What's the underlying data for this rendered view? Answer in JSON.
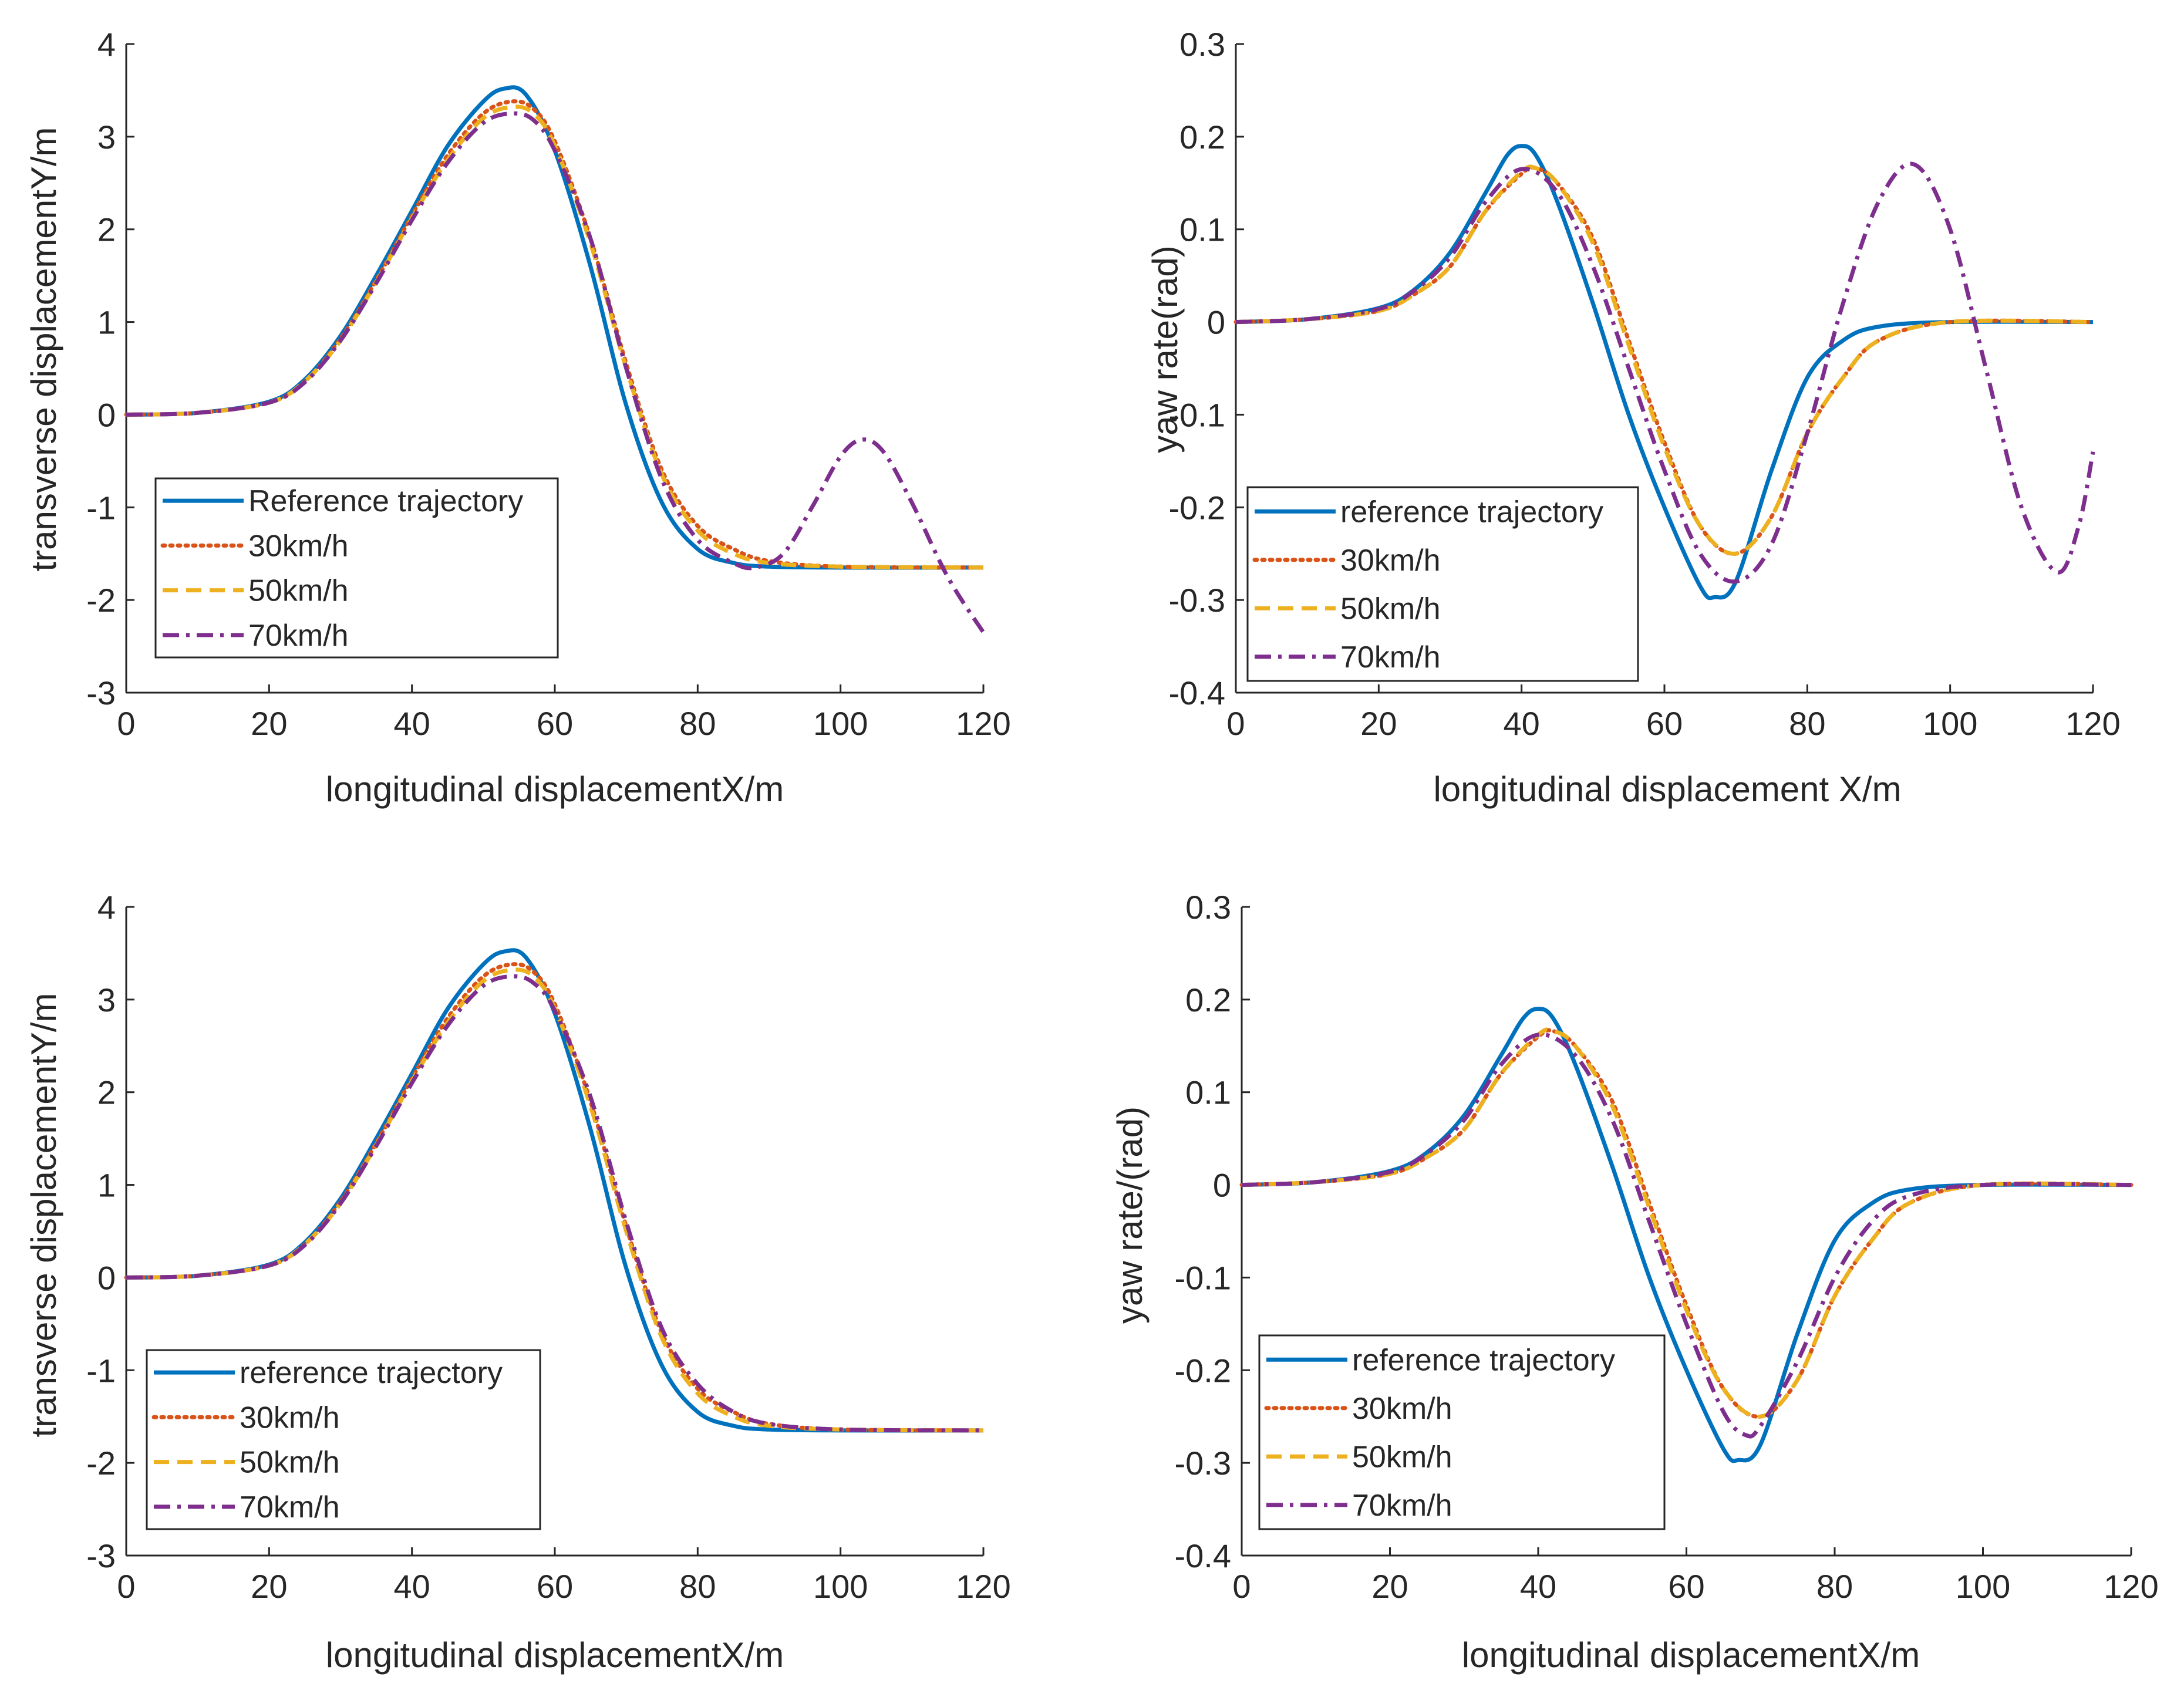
{
  "colors": {
    "reference": "#0072BD",
    "v30": "#D95319",
    "v50": "#EDB120",
    "v70": "#7E2F8E",
    "axis": "#262626"
  },
  "chart_data": [
    {
      "id": "tl",
      "type": "line",
      "xlabel": "longitudinal displacementX/m",
      "ylabel": "transverse displacementY/m",
      "xlim": [
        0,
        120
      ],
      "ylim": [
        -3,
        4
      ],
      "xticks": [
        "0",
        "20",
        "40",
        "60",
        "80",
        "100",
        "120"
      ],
      "yticks": [
        "-3",
        "-2",
        "-1",
        "0",
        "1",
        "2",
        "3",
        "4"
      ],
      "legend_position": "bottom-left",
      "series": [
        {
          "name": "Reference trajectory",
          "style": "solid",
          "color_key": "reference",
          "x": [
            0,
            10,
            20,
            25,
            30,
            35,
            40,
            45,
            50,
            53,
            56,
            60,
            65,
            70,
            75,
            80,
            85,
            90,
            100,
            120
          ],
          "y": [
            0,
            0.02,
            0.14,
            0.38,
            0.85,
            1.5,
            2.2,
            2.9,
            3.38,
            3.52,
            3.45,
            2.85,
            1.6,
            0.1,
            -0.95,
            -1.45,
            -1.6,
            -1.64,
            -1.65,
            -1.65
          ]
        },
        {
          "name": "30km/h",
          "style": "dotted",
          "color_key": "v30",
          "x": [
            0,
            10,
            20,
            25,
            30,
            35,
            40,
            45,
            50,
            54,
            57,
            60,
            65,
            70,
            75,
            80,
            85,
            90,
            100,
            120
          ],
          "y": [
            0,
            0.02,
            0.13,
            0.36,
            0.82,
            1.45,
            2.15,
            2.8,
            3.25,
            3.38,
            3.3,
            2.95,
            1.9,
            0.55,
            -0.6,
            -1.2,
            -1.45,
            -1.58,
            -1.64,
            -1.65
          ]
        },
        {
          "name": "50km/h",
          "style": "dashed",
          "color_key": "v50",
          "x": [
            0,
            10,
            20,
            25,
            30,
            35,
            40,
            45,
            50,
            54,
            57,
            60,
            65,
            70,
            75,
            80,
            85,
            90,
            100,
            120
          ],
          "y": [
            0,
            0.02,
            0.13,
            0.36,
            0.8,
            1.43,
            2.12,
            2.75,
            3.2,
            3.32,
            3.25,
            2.9,
            1.85,
            0.5,
            -0.65,
            -1.25,
            -1.5,
            -1.6,
            -1.64,
            -1.65
          ]
        },
        {
          "name": "70km/h",
          "style": "dashdot",
          "color_key": "v70",
          "x": [
            0,
            10,
            20,
            25,
            30,
            35,
            40,
            45,
            50,
            54,
            57,
            60,
            65,
            70,
            75,
            80,
            85,
            88,
            92,
            96,
            100,
            103,
            106,
            110,
            115,
            120
          ],
          "y": [
            0,
            0.02,
            0.13,
            0.35,
            0.8,
            1.42,
            2.1,
            2.72,
            3.15,
            3.25,
            3.18,
            2.85,
            1.9,
            0.5,
            -0.7,
            -1.35,
            -1.6,
            -1.65,
            -1.5,
            -1.0,
            -0.45,
            -0.27,
            -0.4,
            -0.95,
            -1.75,
            -2.35
          ]
        }
      ]
    },
    {
      "id": "tr",
      "type": "line",
      "xlabel": "longitudinal displacement X/m",
      "ylabel": "yaw rate(rad)",
      "xlim": [
        0,
        120
      ],
      "ylim": [
        -0.4,
        0.3
      ],
      "xticks": [
        "0",
        "20",
        "40",
        "60",
        "80",
        "100",
        "120"
      ],
      "yticks": [
        "-0.4",
        "-0.3",
        "-0.2",
        "-0.1",
        "0",
        "0.1",
        "0.2",
        "0.3"
      ],
      "legend_position": "bottom-left",
      "series": [
        {
          "name": "reference trajectory",
          "style": "solid",
          "color_key": "reference",
          "x": [
            0,
            10,
            20,
            25,
            30,
            35,
            38,
            40,
            42,
            45,
            50,
            55,
            60,
            65,
            67,
            70,
            75,
            80,
            85,
            90,
            100,
            120
          ],
          "y": [
            0,
            0.003,
            0.015,
            0.035,
            0.075,
            0.14,
            0.18,
            0.19,
            0.18,
            0.13,
            0.02,
            -0.1,
            -0.2,
            -0.285,
            -0.297,
            -0.28,
            -0.16,
            -0.06,
            -0.02,
            -0.005,
            0,
            0
          ]
        },
        {
          "name": "30km/h",
          "style": "dotted",
          "color_key": "v30",
          "x": [
            0,
            10,
            20,
            25,
            30,
            35,
            40,
            42,
            45,
            50,
            55,
            60,
            65,
            70,
            75,
            80,
            85,
            90,
            100,
            120
          ],
          "y": [
            0,
            0.003,
            0.012,
            0.03,
            0.06,
            0.12,
            0.16,
            0.166,
            0.15,
            0.09,
            -0.02,
            -0.13,
            -0.22,
            -0.25,
            -0.21,
            -0.12,
            -0.06,
            -0.02,
            0,
            0
          ]
        },
        {
          "name": "50km/h",
          "style": "dashed",
          "color_key": "v50",
          "x": [
            0,
            10,
            20,
            25,
            30,
            35,
            40,
            42,
            45,
            50,
            55,
            60,
            65,
            70,
            75,
            80,
            85,
            90,
            100,
            120
          ],
          "y": [
            0,
            0.003,
            0.012,
            0.03,
            0.06,
            0.12,
            0.162,
            0.166,
            0.15,
            0.085,
            -0.025,
            -0.135,
            -0.22,
            -0.25,
            -0.21,
            -0.12,
            -0.06,
            -0.02,
            0,
            0
          ]
        },
        {
          "name": "70km/h",
          "style": "dashdot",
          "color_key": "v70",
          "x": [
            0,
            10,
            20,
            25,
            30,
            35,
            40,
            45,
            50,
            55,
            60,
            65,
            70,
            75,
            80,
            85,
            90,
            95,
            100,
            105,
            110,
            115,
            118,
            120
          ],
          "y": [
            0,
            0.003,
            0.014,
            0.034,
            0.07,
            0.13,
            0.165,
            0.14,
            0.06,
            -0.05,
            -0.16,
            -0.25,
            -0.28,
            -0.24,
            -0.12,
            0.02,
            0.13,
            0.17,
            0.1,
            -0.05,
            -0.2,
            -0.27,
            -0.22,
            -0.14
          ]
        }
      ]
    },
    {
      "id": "bl",
      "type": "line",
      "xlabel": "longitudinal displacementX/m",
      "ylabel": "transverse displacementY/m",
      "xlim": [
        0,
        120
      ],
      "ylim": [
        -3,
        4
      ],
      "xticks": [
        "0",
        "20",
        "40",
        "60",
        "80",
        "100",
        "120"
      ],
      "yticks": [
        "-3",
        "-2",
        "-1",
        "0",
        "1",
        "2",
        "3",
        "4"
      ],
      "legend_position": "bottom-left",
      "series": [
        {
          "name": "reference trajectory",
          "style": "solid",
          "color_key": "reference",
          "x": [
            0,
            10,
            20,
            25,
            30,
            35,
            40,
            45,
            50,
            53,
            56,
            60,
            65,
            70,
            75,
            80,
            85,
            90,
            100,
            120
          ],
          "y": [
            0,
            0.02,
            0.14,
            0.38,
            0.85,
            1.5,
            2.2,
            2.9,
            3.38,
            3.52,
            3.45,
            2.85,
            1.6,
            0.1,
            -0.95,
            -1.45,
            -1.6,
            -1.64,
            -1.65,
            -1.65
          ]
        },
        {
          "name": "30km/h",
          "style": "dotted",
          "color_key": "v30",
          "x": [
            0,
            10,
            20,
            25,
            30,
            35,
            40,
            45,
            50,
            54,
            57,
            60,
            65,
            70,
            75,
            80,
            85,
            90,
            100,
            120
          ],
          "y": [
            0,
            0.02,
            0.13,
            0.36,
            0.82,
            1.45,
            2.15,
            2.8,
            3.25,
            3.38,
            3.3,
            2.95,
            1.9,
            0.55,
            -0.6,
            -1.2,
            -1.45,
            -1.58,
            -1.64,
            -1.65
          ]
        },
        {
          "name": "50km/h",
          "style": "dashed",
          "color_key": "v50",
          "x": [
            0,
            10,
            20,
            25,
            30,
            35,
            40,
            45,
            50,
            54,
            57,
            60,
            65,
            70,
            75,
            80,
            85,
            90,
            100,
            120
          ],
          "y": [
            0,
            0.02,
            0.13,
            0.36,
            0.8,
            1.43,
            2.12,
            2.75,
            3.2,
            3.32,
            3.25,
            2.9,
            1.85,
            0.5,
            -0.65,
            -1.25,
            -1.5,
            -1.6,
            -1.64,
            -1.65
          ]
        },
        {
          "name": "70km/h",
          "style": "dashdot",
          "color_key": "v70",
          "x": [
            0,
            10,
            20,
            25,
            30,
            35,
            40,
            45,
            50,
            54,
            57,
            60,
            65,
            70,
            75,
            80,
            85,
            90,
            100,
            120
          ],
          "y": [
            0,
            0.02,
            0.13,
            0.35,
            0.8,
            1.42,
            2.1,
            2.72,
            3.15,
            3.25,
            3.18,
            2.88,
            1.95,
            0.6,
            -0.55,
            -1.15,
            -1.45,
            -1.58,
            -1.64,
            -1.65
          ]
        }
      ]
    },
    {
      "id": "br",
      "type": "line",
      "xlabel": "longitudinal displacementX/m",
      "ylabel": "yaw rate/(rad)",
      "xlim": [
        0,
        120
      ],
      "ylim": [
        -0.4,
        0.3
      ],
      "xticks": [
        "0",
        "20",
        "40",
        "60",
        "80",
        "100",
        "120"
      ],
      "yticks": [
        "-0.4",
        "-0.3",
        "-0.2",
        "-0.1",
        "0",
        "0.1",
        "0.2",
        "0.3"
      ],
      "legend_position": "bottom-left",
      "series": [
        {
          "name": "reference trajectory",
          "style": "solid",
          "color_key": "reference",
          "x": [
            0,
            10,
            20,
            25,
            30,
            35,
            38,
            40,
            42,
            45,
            50,
            55,
            60,
            65,
            67,
            70,
            75,
            80,
            85,
            90,
            100,
            120
          ],
          "y": [
            0,
            0.003,
            0.015,
            0.035,
            0.075,
            0.14,
            0.18,
            0.19,
            0.18,
            0.13,
            0.02,
            -0.1,
            -0.2,
            -0.285,
            -0.297,
            -0.28,
            -0.16,
            -0.06,
            -0.02,
            -0.005,
            0,
            0
          ]
        },
        {
          "name": "30km/h",
          "style": "dotted",
          "color_key": "v30",
          "x": [
            0,
            10,
            20,
            25,
            30,
            35,
            40,
            42,
            45,
            50,
            55,
            60,
            65,
            70,
            75,
            80,
            85,
            90,
            100,
            120
          ],
          "y": [
            0,
            0.003,
            0.012,
            0.03,
            0.06,
            0.12,
            0.16,
            0.166,
            0.15,
            0.09,
            -0.02,
            -0.13,
            -0.22,
            -0.25,
            -0.21,
            -0.12,
            -0.06,
            -0.02,
            0,
            0
          ]
        },
        {
          "name": "50km/h",
          "style": "dashed",
          "color_key": "v50",
          "x": [
            0,
            10,
            20,
            25,
            30,
            35,
            40,
            42,
            45,
            50,
            55,
            60,
            65,
            70,
            75,
            80,
            85,
            90,
            100,
            120
          ],
          "y": [
            0,
            0.003,
            0.012,
            0.03,
            0.06,
            0.12,
            0.162,
            0.166,
            0.15,
            0.085,
            -0.025,
            -0.135,
            -0.22,
            -0.25,
            -0.21,
            -0.12,
            -0.06,
            -0.02,
            0,
            0
          ]
        },
        {
          "name": "70km/h",
          "style": "dashdot",
          "color_key": "v70",
          "x": [
            0,
            10,
            20,
            25,
            30,
            35,
            40,
            45,
            50,
            55,
            60,
            65,
            68,
            70,
            75,
            80,
            85,
            90,
            100,
            120
          ],
          "y": [
            0,
            0.003,
            0.014,
            0.034,
            0.07,
            0.13,
            0.162,
            0.14,
            0.07,
            -0.04,
            -0.15,
            -0.245,
            -0.27,
            -0.26,
            -0.19,
            -0.1,
            -0.04,
            -0.012,
            0,
            0
          ]
        }
      ]
    }
  ]
}
